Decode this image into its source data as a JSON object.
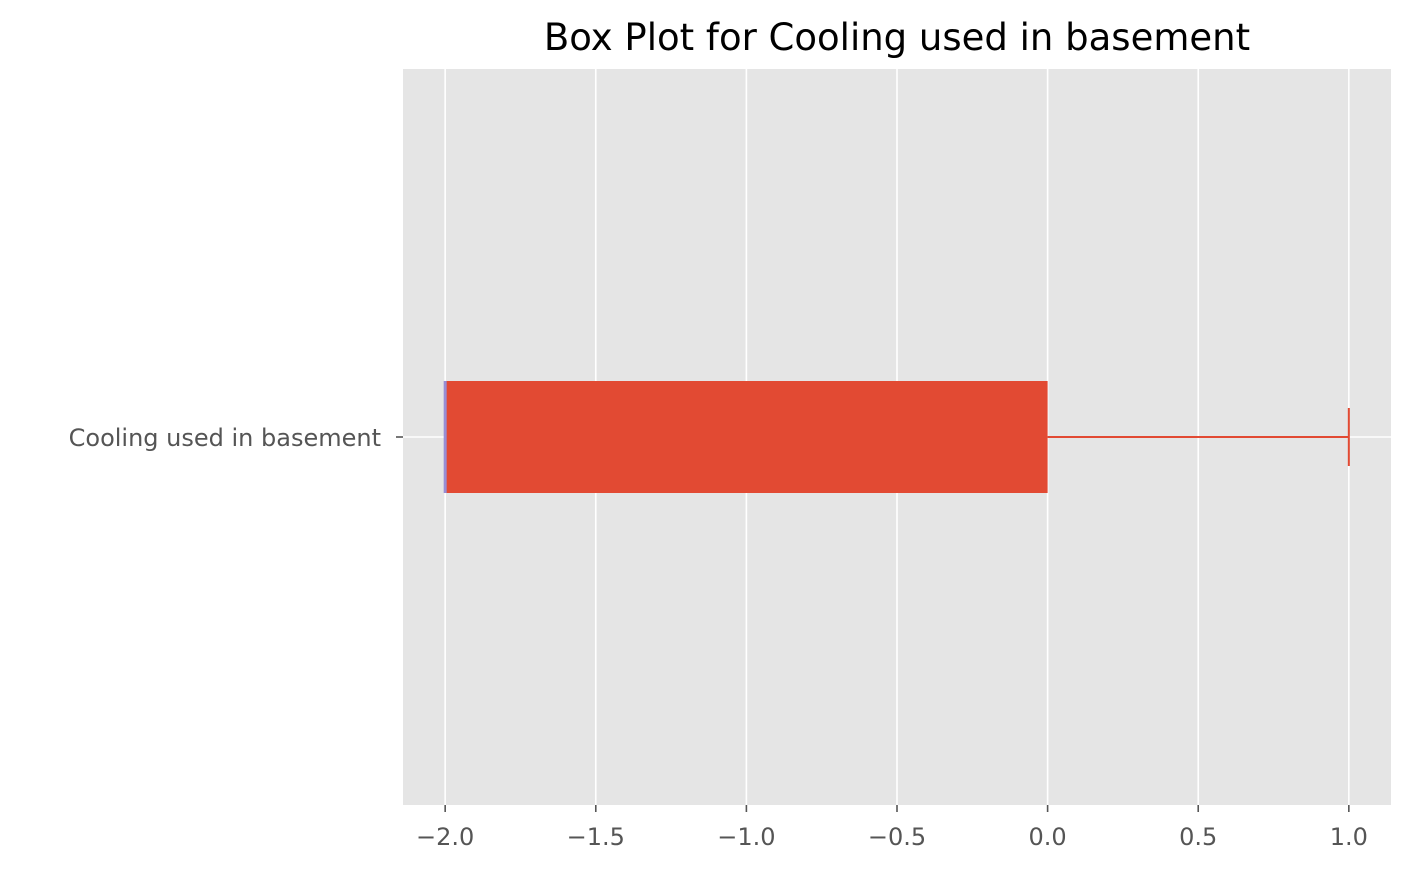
{
  "chart_data": {
    "type": "box",
    "orientation": "horizontal",
    "title": "Box Plot for Cooling used in basement",
    "xlabel": "",
    "ylabel": "",
    "categories": [
      "Cooling used in basement"
    ],
    "boxes": [
      {
        "name": "Cooling used in basement",
        "whisker_low": -2.0,
        "q1": -2.0,
        "median": -2.0,
        "q3": 0.0,
        "whisker_high": 1.0
      }
    ],
    "xlim": [
      -2.14,
      1.14
    ],
    "x_ticks": [
      -2.0,
      -1.5,
      -1.0,
      -0.5,
      0.0,
      0.5,
      1.0
    ],
    "x_tick_labels": [
      "−2.0",
      "−1.5",
      "−1.0",
      "−0.5",
      "0.0",
      "0.5",
      "1.0"
    ],
    "grid": true,
    "legend": "none",
    "colors": {
      "background": "#E5E5E5",
      "grid": "#FFFFFF",
      "box": "#E24A33",
      "median": "#988ED5",
      "tick_label": "#555555",
      "title": "#000000"
    }
  }
}
